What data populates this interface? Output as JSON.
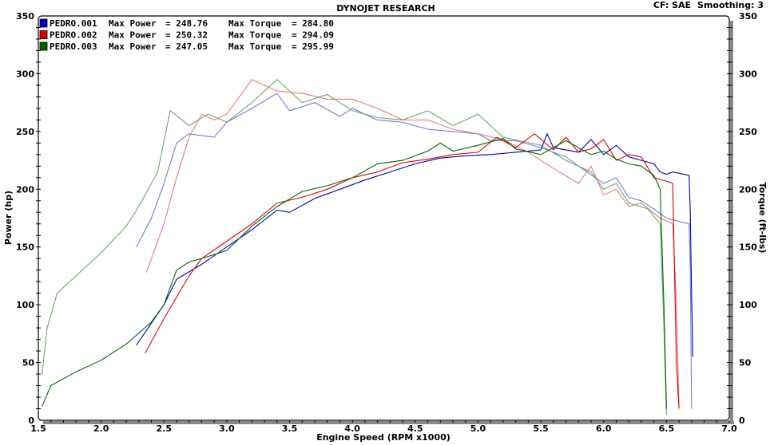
{
  "header": {
    "title": "DYNOJET RESEARCH",
    "cf": "CF: SAE",
    "smoothing": "Smoothing: 3"
  },
  "chart_data": {
    "type": "line",
    "title": "DYNOJET RESEARCH",
    "xlabel": "Engine Speed (RPM x1000)",
    "ylabel": "Power (hp)",
    "y2label": "Torque (ft-lbs)",
    "xlim": [
      1.5,
      7.0
    ],
    "ylim": [
      0,
      350
    ],
    "y2lim": [
      0,
      350
    ],
    "grid": true,
    "legend_position": "top-left",
    "x_ticks": [
      "1.5",
      "2.0",
      "2.5",
      "3.0",
      "3.5",
      "4.0",
      "4.5",
      "5.0",
      "5.5",
      "6.0",
      "6.5",
      "7.0"
    ],
    "y_ticks": [
      "0",
      "50",
      "100",
      "150",
      "200",
      "250",
      "300",
      "350"
    ],
    "legend": [
      {
        "name": "PEDRO.001",
        "power_label": "Max Power",
        "power": "= 248.76",
        "torque_label": "Max Torque",
        "torque": "= 284.80",
        "color": "#0000cc"
      },
      {
        "name": "PEDRO.002",
        "power_label": "Max Power",
        "power": "= 250.32",
        "torque_label": "Max Torque",
        "torque": "= 294.09",
        "color": "#dd0000"
      },
      {
        "name": "PEDRO.003",
        "power_label": "Max Power",
        "power": "= 247.05",
        "torque_label": "Max Torque",
        "torque": "= 295.99",
        "color": "#006600"
      }
    ],
    "series": [
      {
        "run": "PEDRO.001",
        "kind": "power",
        "color": "#0000b0",
        "x": [
          2.28,
          2.5,
          2.6,
          2.8,
          3.0,
          3.2,
          3.4,
          3.5,
          3.7,
          3.9,
          4.1,
          4.3,
          4.5,
          4.7,
          4.9,
          5.1,
          5.3,
          5.5,
          5.55,
          5.6,
          5.8,
          5.9,
          6.0,
          6.1,
          6.2,
          6.3,
          6.4,
          6.45,
          6.5,
          6.55,
          6.68,
          6.69,
          6.7,
          6.71
        ],
        "y": [
          65,
          100,
          122,
          135,
          150,
          165,
          182,
          180,
          192,
          200,
          208,
          215,
          222,
          227,
          229,
          230,
          232,
          234,
          248,
          236,
          232,
          243,
          230,
          238,
          228,
          225,
          222,
          215,
          213,
          215,
          212,
          180,
          110,
          55
        ]
      },
      {
        "run": "PEDRO.002",
        "kind": "power",
        "color": "#dd0000",
        "x": [
          2.35,
          2.5,
          2.7,
          2.8,
          3.0,
          3.2,
          3.4,
          3.6,
          3.8,
          4.0,
          4.2,
          4.4,
          4.6,
          4.8,
          5.0,
          5.15,
          5.3,
          5.45,
          5.6,
          5.7,
          5.8,
          5.9,
          6.0,
          6.1,
          6.2,
          6.3,
          6.4,
          6.5,
          6.55,
          6.56,
          6.58,
          6.6
        ],
        "y": [
          58,
          88,
          125,
          140,
          155,
          170,
          188,
          193,
          200,
          210,
          215,
          223,
          226,
          230,
          232,
          245,
          236,
          248,
          234,
          245,
          232,
          235,
          243,
          225,
          230,
          228,
          210,
          207,
          205,
          150,
          50,
          10
        ]
      },
      {
        "run": "PEDRO.003",
        "kind": "power",
        "color": "#006600",
        "x": [
          1.53,
          1.6,
          1.8,
          2.0,
          2.2,
          2.4,
          2.5,
          2.6,
          2.7,
          2.8,
          3.0,
          3.2,
          3.4,
          3.6,
          3.8,
          4.0,
          4.2,
          4.4,
          4.6,
          4.7,
          4.8,
          5.0,
          5.2,
          5.3,
          5.5,
          5.7,
          5.9,
          6.0,
          6.1,
          6.2,
          6.3,
          6.4,
          6.45,
          6.48,
          6.5
        ],
        "y": [
          12,
          30,
          42,
          52,
          66,
          85,
          100,
          130,
          137,
          140,
          147,
          168,
          185,
          198,
          203,
          210,
          222,
          225,
          233,
          240,
          233,
          238,
          244,
          235,
          230,
          242,
          230,
          233,
          226,
          222,
          220,
          212,
          200,
          100,
          10
        ]
      },
      {
        "run": "PEDRO.001",
        "kind": "torque",
        "color": "#7777dd",
        "x": [
          2.28,
          2.4,
          2.5,
          2.6,
          2.7,
          2.9,
          3.0,
          3.2,
          3.4,
          3.5,
          3.7,
          3.9,
          4.0,
          4.2,
          4.4,
          4.6,
          4.8,
          5.0,
          5.1,
          5.3,
          5.5,
          5.7,
          5.8,
          6.0,
          6.1,
          6.2,
          6.3,
          6.4,
          6.5,
          6.6,
          6.68,
          6.69,
          6.7
        ],
        "y": [
          150,
          175,
          205,
          240,
          248,
          245,
          258,
          270,
          283,
          268,
          275,
          263,
          270,
          260,
          258,
          252,
          250,
          248,
          242,
          242,
          236,
          228,
          220,
          205,
          210,
          193,
          190,
          183,
          175,
          172,
          170,
          130,
          10
        ]
      },
      {
        "run": "PEDRO.002",
        "kind": "torque",
        "color": "#ee7777",
        "x": [
          2.36,
          2.5,
          2.6,
          2.7,
          2.8,
          2.9,
          3.0,
          3.2,
          3.4,
          3.6,
          3.8,
          4.0,
          4.2,
          4.4,
          4.6,
          4.8,
          5.0,
          5.2,
          5.4,
          5.6,
          5.8,
          5.9,
          6.0,
          6.1,
          6.2,
          6.3,
          6.45,
          6.55,
          6.58,
          6.6
        ],
        "y": [
          128,
          170,
          210,
          245,
          265,
          260,
          265,
          295,
          285,
          283,
          278,
          278,
          270,
          260,
          260,
          252,
          248,
          243,
          232,
          218,
          205,
          220,
          195,
          200,
          185,
          188,
          175,
          170,
          100,
          10
        ]
      },
      {
        "run": "PEDRO.003",
        "kind": "torque",
        "color": "#66aa66",
        "x": [
          1.53,
          1.57,
          1.65,
          1.8,
          2.0,
          2.2,
          2.3,
          2.45,
          2.55,
          2.7,
          2.85,
          3.0,
          3.2,
          3.4,
          3.6,
          3.8,
          4.0,
          4.2,
          4.4,
          4.6,
          4.8,
          5.0,
          5.2,
          5.5,
          5.7,
          5.9,
          6.0,
          6.1,
          6.2,
          6.35,
          6.45,
          6.48,
          6.5
        ],
        "y": [
          40,
          80,
          110,
          125,
          145,
          168,
          185,
          215,
          268,
          255,
          265,
          258,
          275,
          295,
          275,
          282,
          268,
          262,
          260,
          268,
          255,
          265,
          245,
          238,
          225,
          215,
          200,
          205,
          188,
          183,
          170,
          80,
          5
        ]
      }
    ]
  }
}
